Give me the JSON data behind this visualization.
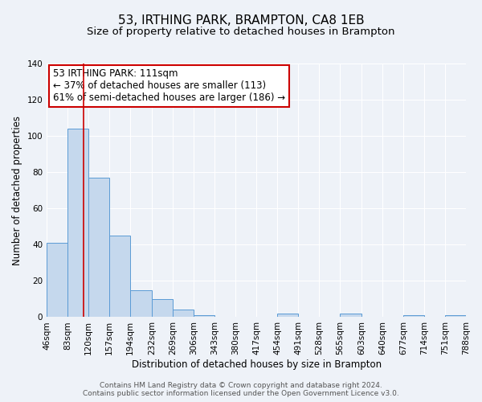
{
  "title": "53, IRTHING PARK, BRAMPTON, CA8 1EB",
  "subtitle": "Size of property relative to detached houses in Brampton",
  "xlabel": "Distribution of detached houses by size in Brampton",
  "ylabel": "Number of detached properties",
  "bin_edges": [
    46,
    83,
    120,
    157,
    194,
    232,
    269,
    306,
    343,
    380,
    417,
    454,
    491,
    528,
    565,
    603,
    640,
    677,
    714,
    751,
    788
  ],
  "bin_labels": [
    "46sqm",
    "83sqm",
    "120sqm",
    "157sqm",
    "194sqm",
    "232sqm",
    "269sqm",
    "306sqm",
    "343sqm",
    "380sqm",
    "417sqm",
    "454sqm",
    "491sqm",
    "528sqm",
    "565sqm",
    "603sqm",
    "640sqm",
    "677sqm",
    "714sqm",
    "751sqm",
    "788sqm"
  ],
  "counts": [
    41,
    104,
    77,
    45,
    15,
    10,
    4,
    1,
    0,
    0,
    0,
    2,
    0,
    0,
    2,
    0,
    0,
    1,
    0,
    1
  ],
  "bar_color": "#c5d8ed",
  "bar_edge_color": "#5b9bd5",
  "vline_x": 111,
  "vline_color": "#cc0000",
  "ylim": [
    0,
    140
  ],
  "yticks": [
    0,
    20,
    40,
    60,
    80,
    100,
    120,
    140
  ],
  "annotation_title": "53 IRTHING PARK: 111sqm",
  "annotation_line1": "← 37% of detached houses are smaller (113)",
  "annotation_line2": "61% of semi-detached houses are larger (186) →",
  "annotation_box_color": "#cc0000",
  "footer_line1": "Contains HM Land Registry data © Crown copyright and database right 2024.",
  "footer_line2": "Contains public sector information licensed under the Open Government Licence v3.0.",
  "background_color": "#eef2f8",
  "grid_color": "#ffffff",
  "title_fontsize": 11,
  "subtitle_fontsize": 9.5,
  "axis_label_fontsize": 8.5,
  "tick_fontsize": 7.5,
  "annotation_fontsize": 8.5,
  "footer_fontsize": 6.5
}
